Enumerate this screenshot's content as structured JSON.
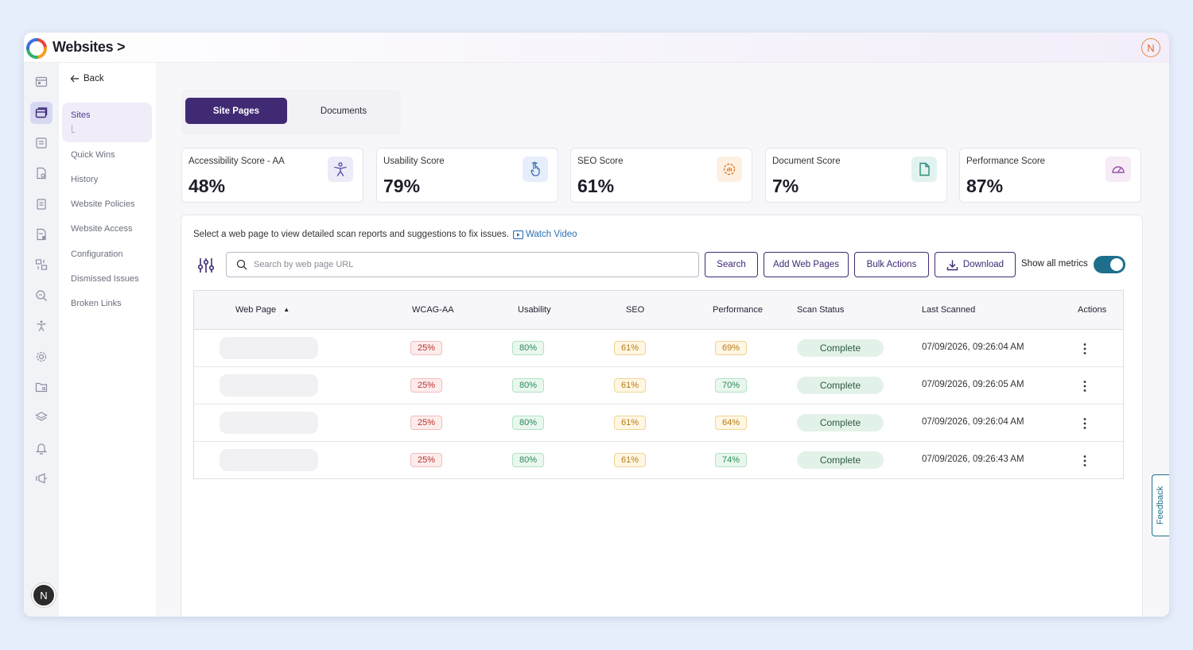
{
  "header": {
    "title": "Websites >",
    "user_initial": "N"
  },
  "rail": {
    "user_initial": "N"
  },
  "subnav": {
    "back_label": "Back",
    "active_item": "Sites",
    "items": [
      "Quick Wins",
      "History",
      "Website Policies",
      "Website Access",
      "Configuration",
      "Dismissed Issues",
      "Broken Links"
    ]
  },
  "tabs": {
    "active": "Site Pages",
    "inactive": "Documents"
  },
  "scores": [
    {
      "label": "Accessibility Score - AA",
      "value": "48%"
    },
    {
      "label": "Usability Score",
      "value": "79%"
    },
    {
      "label": "SEO Score",
      "value": "61%"
    },
    {
      "label": "Document Score",
      "value": "7%"
    },
    {
      "label": "Performance Score",
      "value": "87%"
    }
  ],
  "panel": {
    "intro": "Select a web page to view detailed scan reports and suggestions to fix issues.",
    "watch_video": "Watch Video",
    "search_placeholder": "Search by web page URL",
    "search_button": "Search",
    "add_button": "Add Web Pages",
    "bulk_button": "Bulk Actions",
    "download_button": "Download",
    "toggle_label": "Show all metrics",
    "toggle_on": true
  },
  "table": {
    "headers": {
      "web_page": "Web Page",
      "sort_arrow": "▲",
      "wcag": "WCAG-AA",
      "usability": "Usability",
      "seo": "SEO",
      "performance": "Performance",
      "status": "Scan Status",
      "scanned": "Last Scanned",
      "actions": "Actions"
    },
    "rows": [
      {
        "wcag": "25%",
        "usability": "80%",
        "seo": "61%",
        "performance": "69%",
        "status": "Complete",
        "scanned": "07/09/2026, 09:26:04 AM"
      },
      {
        "wcag": "25%",
        "usability": "80%",
        "seo": "61%",
        "performance": "70%",
        "status": "Complete",
        "scanned": "07/09/2026, 09:26:05 AM"
      },
      {
        "wcag": "25%",
        "usability": "80%",
        "seo": "61%",
        "performance": "64%",
        "status": "Complete",
        "scanned": "07/09/2026, 09:26:04 AM"
      },
      {
        "wcag": "25%",
        "usability": "80%",
        "seo": "61%",
        "performance": "74%",
        "status": "Complete",
        "scanned": "07/09/2026, 09:26:43 AM"
      }
    ]
  },
  "feedback_label": "Feedback",
  "colors": {
    "brand": "#3f2a73",
    "teal": "#1e6f8c",
    "red": "#b8322f",
    "green": "#2a8a55",
    "amber": "#b57a14"
  }
}
